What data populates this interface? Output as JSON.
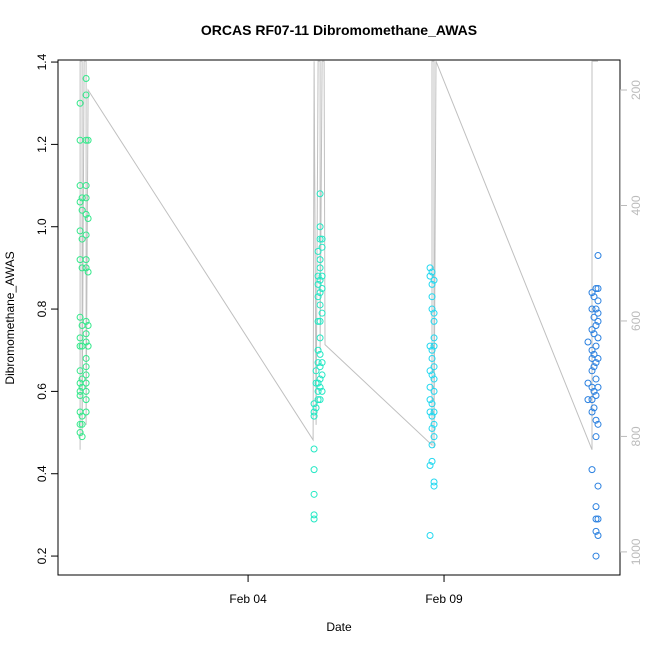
{
  "chart_data": {
    "type": "scatter",
    "title": "ORCAS RF07-11 Dibromomethane_AWAS",
    "x_label": "Date",
    "y_label": "Dibromomethane_AWAS",
    "xlim": [
      -0.85,
      13.49
    ],
    "xticks": [
      {
        "value": 4,
        "label": "Feb 04"
      },
      {
        "value": 9,
        "label": "Feb 09"
      }
    ],
    "ylim": [
      0.154,
      1.405
    ],
    "yticks": [
      0.2,
      0.4,
      0.6,
      0.8,
      {
        "value": 1,
        "label": "1.0"
      },
      1.2,
      1.4
    ],
    "y2lim": [
      1040,
      148
    ],
    "y2ticks": [
      200,
      400,
      600,
      800,
      1000
    ],
    "series": [
      {
        "mode": "lines",
        "axis": "y2",
        "color": "#c0c0c0",
        "x": [
          -0.286,
          -0.286,
          -0.235,
          -0.235,
          -0.184,
          -0.133,
          -0.133,
          -0.082,
          5.658,
          5.684,
          5.735,
          5.786,
          5.837,
          5.837,
          5.888,
          5.939,
          5.964,
          8.694,
          8.694,
          8.745,
          8.745,
          8.796,
          12.776,
          12.776,
          12.878,
          12.929
        ],
        "values": [
          823,
          150,
          150,
          800,
          150,
          150,
          780,
          200,
          806,
          150,
          780,
          150,
          150,
          650,
          150,
          150,
          641,
          815,
          150,
          150,
          820,
          150,
          823,
          150,
          150,
          150
        ]
      },
      {
        "mode": "points",
        "color": "#33e88a",
        "x": [
          -0.286,
          -0.286,
          -0.286,
          -0.286,
          -0.286,
          -0.286,
          -0.286,
          -0.286,
          -0.286,
          -0.286,
          -0.286,
          -0.286,
          -0.286,
          -0.286,
          -0.286,
          -0.286,
          -0.235,
          -0.235,
          -0.235,
          -0.235,
          -0.235,
          -0.235,
          -0.235,
          -0.235,
          -0.235,
          -0.235,
          -0.235,
          -0.133,
          -0.133,
          -0.133,
          -0.133,
          -0.133,
          -0.133,
          -0.133,
          -0.133,
          -0.133,
          -0.133,
          -0.133,
          -0.133,
          -0.133,
          -0.133,
          -0.133,
          -0.133,
          -0.133,
          -0.133,
          -0.133,
          -0.082,
          -0.082,
          -0.082,
          -0.082,
          -0.082
        ],
        "values": [
          1.3,
          1.21,
          1.1,
          1.06,
          0.99,
          0.92,
          0.78,
          0.73,
          0.71,
          0.65,
          0.62,
          0.6,
          0.59,
          0.55,
          0.52,
          0.5,
          1.07,
          1.04,
          0.97,
          0.9,
          0.76,
          0.71,
          0.63,
          0.61,
          0.54,
          0.52,
          0.49,
          1.36,
          1.32,
          1.21,
          1.1,
          1.07,
          1.03,
          0.98,
          0.92,
          0.9,
          0.77,
          0.74,
          0.72,
          0.68,
          0.66,
          0.64,
          0.62,
          0.6,
          0.58,
          0.55,
          1.21,
          1.02,
          0.89,
          0.76,
          0.71
        ]
      },
      {
        "mode": "points",
        "color": "#22e8c4",
        "x": [
          5.684,
          5.684,
          5.684,
          5.684,
          5.684,
          5.684,
          5.684,
          5.684,
          5.735,
          5.735,
          5.735,
          5.786,
          5.786,
          5.786,
          5.786,
          5.786,
          5.786,
          5.786,
          5.786,
          5.786,
          5.786,
          5.837,
          5.837,
          5.837,
          5.837,
          5.837,
          5.837,
          5.837,
          5.837,
          5.837,
          5.837,
          5.837,
          5.837,
          5.837,
          5.837,
          5.837,
          5.888,
          5.888,
          5.888,
          5.888,
          5.888,
          5.888,
          5.888,
          5.888
        ],
        "values": [
          0.46,
          0.41,
          0.35,
          0.3,
          0.29,
          0.57,
          0.55,
          0.54,
          0.56,
          0.62,
          0.65,
          0.94,
          0.88,
          0.86,
          0.83,
          0.77,
          0.7,
          0.67,
          0.62,
          0.6,
          0.58,
          1.08,
          1.0,
          0.97,
          0.92,
          0.9,
          0.87,
          0.84,
          0.81,
          0.77,
          0.73,
          0.69,
          0.66,
          0.63,
          0.61,
          0.58,
          0.97,
          0.95,
          0.88,
          0.85,
          0.79,
          0.67,
          0.64,
          0.6
        ]
      },
      {
        "mode": "points",
        "color": "#22d8f0",
        "x": [
          8.643,
          8.643,
          8.643,
          8.643,
          8.643,
          8.643,
          8.643,
          8.643,
          8.643,
          8.694,
          8.694,
          8.694,
          8.694,
          8.694,
          8.694,
          8.694,
          8.694,
          8.694,
          8.694,
          8.694,
          8.694,
          8.745,
          8.745,
          8.745,
          8.745,
          8.745,
          8.745,
          8.745,
          8.745,
          8.745,
          8.745,
          8.745,
          8.745,
          8.745
        ],
        "values": [
          0.9,
          0.88,
          0.71,
          0.65,
          0.61,
          0.58,
          0.55,
          0.42,
          0.25,
          0.89,
          0.86,
          0.83,
          0.8,
          0.7,
          0.68,
          0.64,
          0.57,
          0.54,
          0.51,
          0.47,
          0.43,
          0.87,
          0.79,
          0.77,
          0.73,
          0.71,
          0.66,
          0.63,
          0.6,
          0.55,
          0.52,
          0.49,
          0.38,
          0.37
        ]
      },
      {
        "mode": "points",
        "color": "#2a80e0",
        "x": [
          12.673,
          12.673,
          12.673,
          12.776,
          12.776,
          12.776,
          12.776,
          12.776,
          12.776,
          12.776,
          12.776,
          12.776,
          12.776,
          12.827,
          12.827,
          12.827,
          12.827,
          12.827,
          12.827,
          12.827,
          12.878,
          12.878,
          12.878,
          12.878,
          12.878,
          12.878,
          12.878,
          12.878,
          12.878,
          12.878,
          12.878,
          12.878,
          12.878,
          12.929,
          12.929,
          12.929,
          12.929,
          12.929,
          12.929,
          12.929,
          12.929,
          12.929,
          12.929,
          12.929,
          12.929
        ],
        "values": [
          0.72,
          0.62,
          0.58,
          0.84,
          0.8,
          0.75,
          0.7,
          0.68,
          0.65,
          0.61,
          0.58,
          0.55,
          0.41,
          0.83,
          0.78,
          0.74,
          0.69,
          0.66,
          0.6,
          0.56,
          0.85,
          0.8,
          0.76,
          0.71,
          0.67,
          0.63,
          0.59,
          0.53,
          0.49,
          0.32,
          0.29,
          0.26,
          0.2,
          0.93,
          0.85,
          0.82,
          0.79,
          0.77,
          0.73,
          0.68,
          0.61,
          0.52,
          0.37,
          0.29,
          0.25
        ]
      }
    ]
  }
}
